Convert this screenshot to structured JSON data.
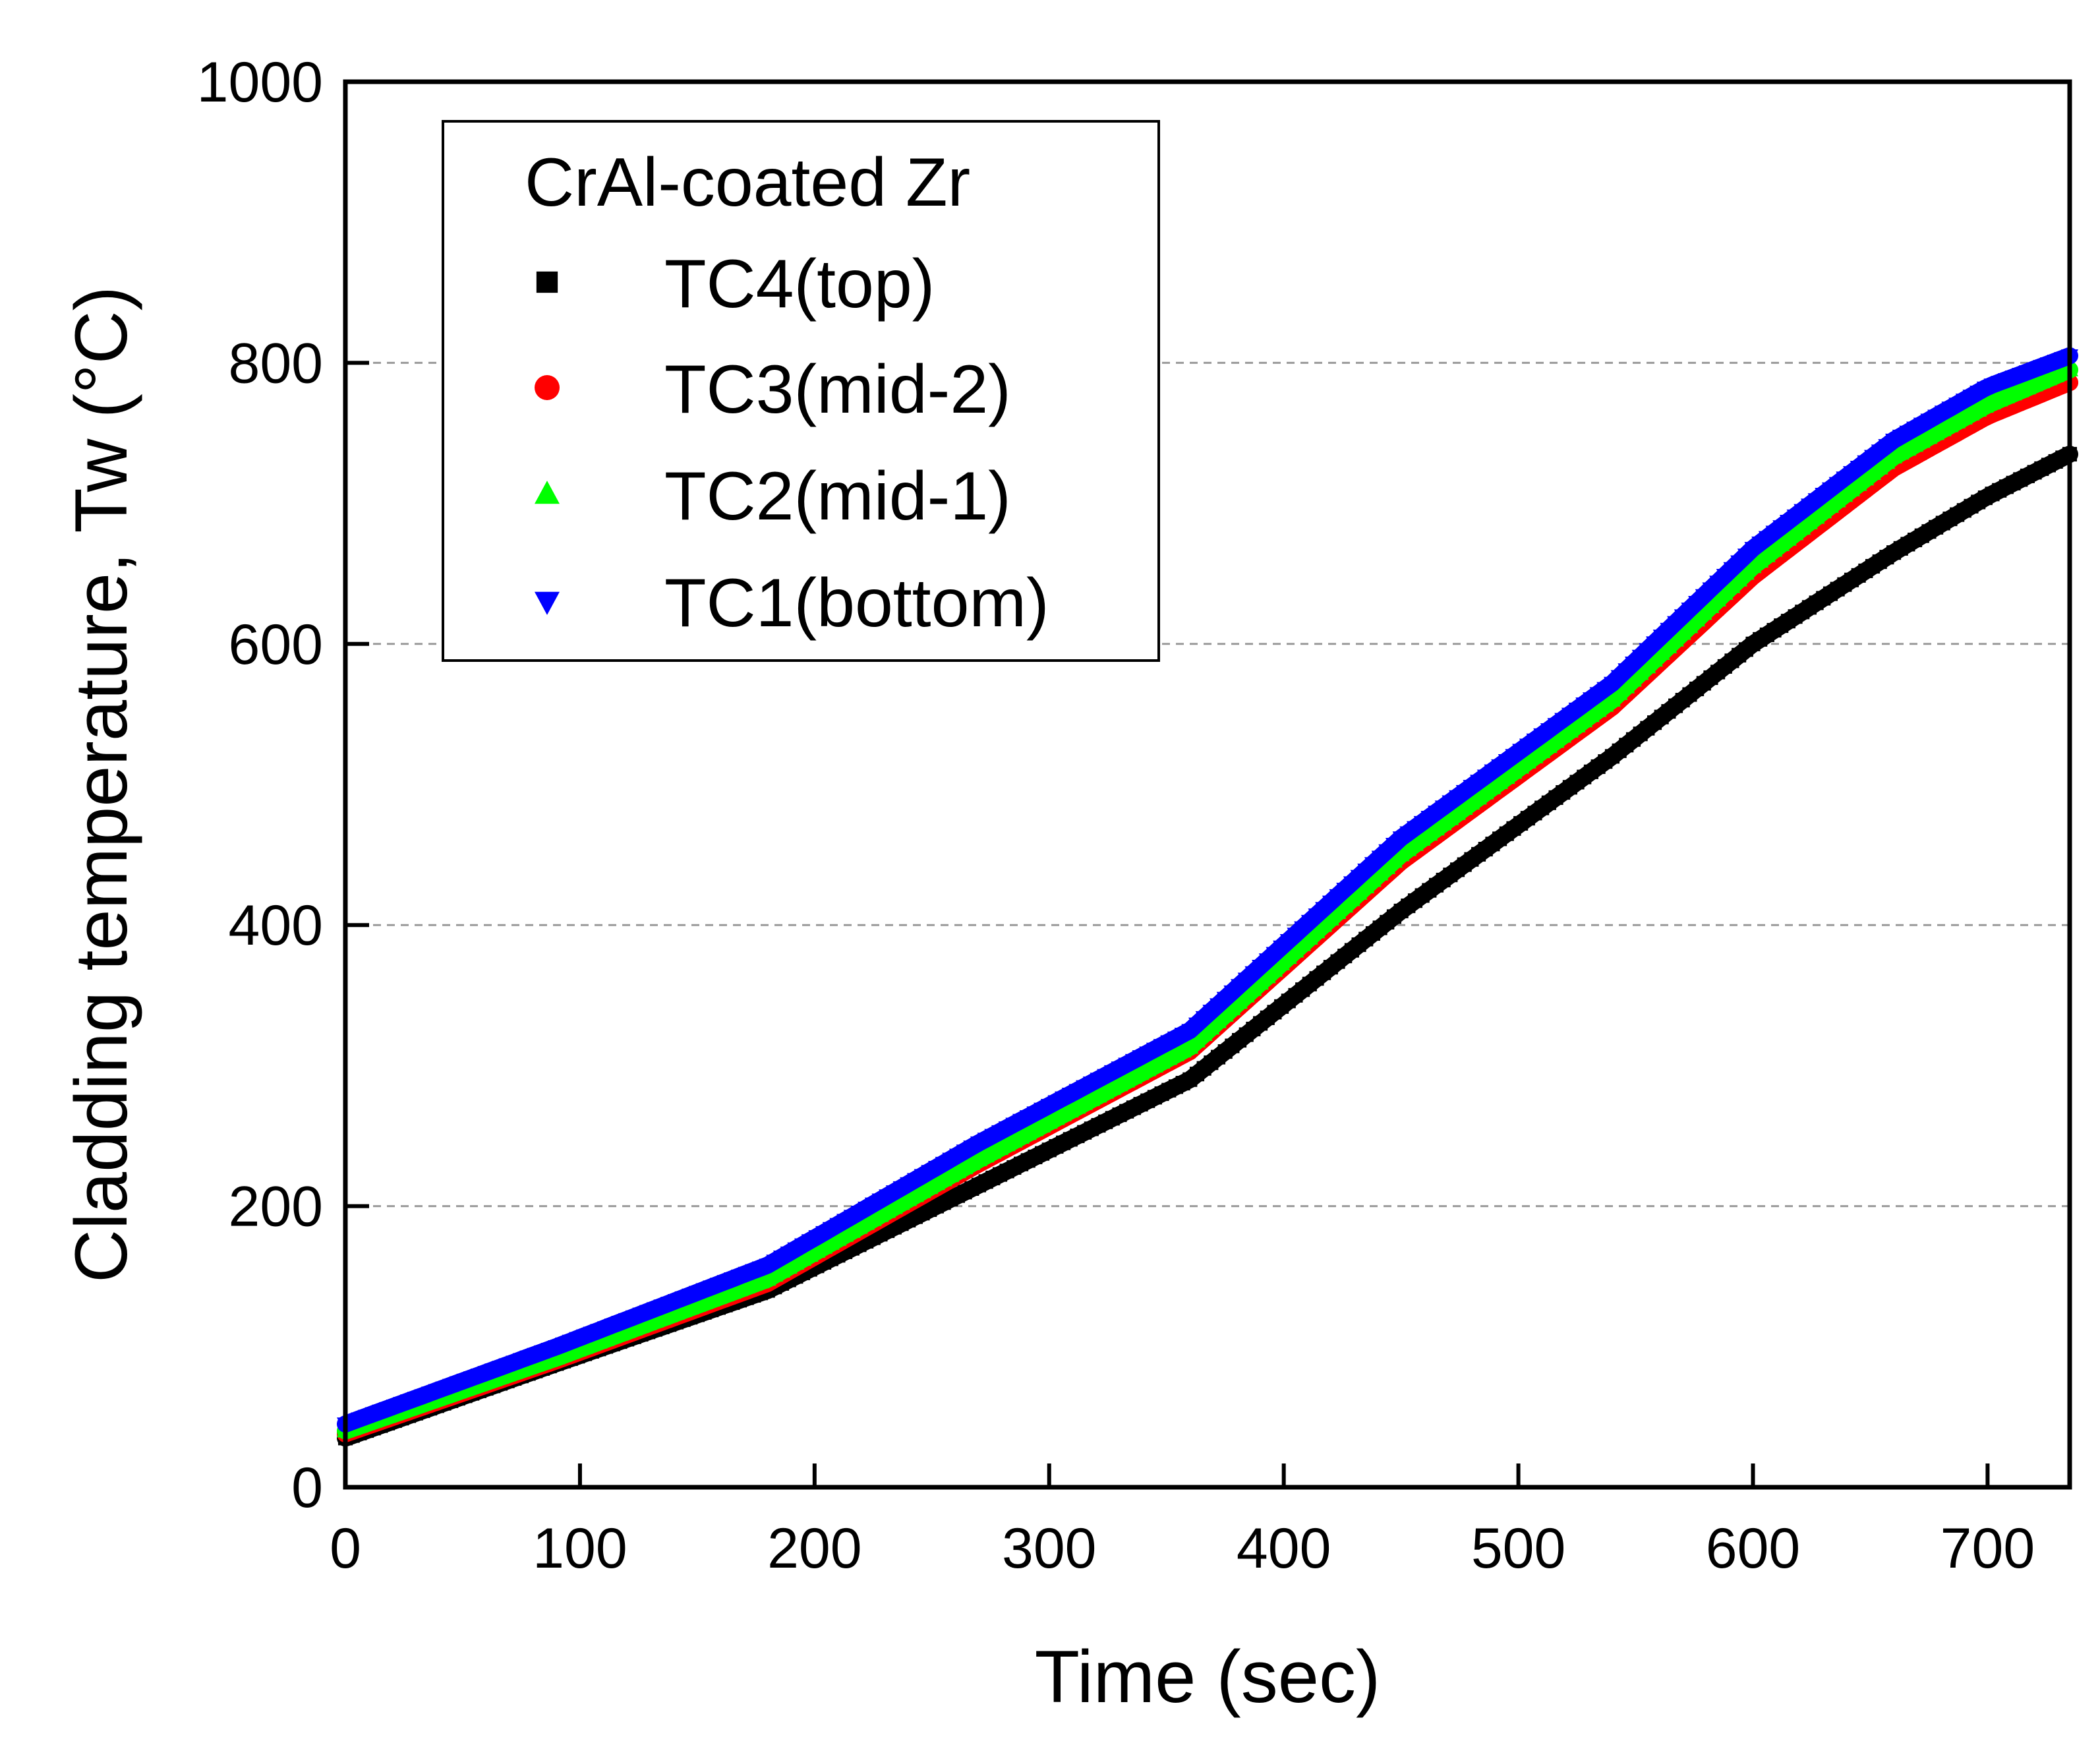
{
  "chart_data": {
    "type": "scatter",
    "title": "",
    "xlabel": "Time (sec)",
    "ylabel": "Cladding temperature, Tw (°C)",
    "xlim": [
      0,
      735
    ],
    "ylim": [
      0,
      1000
    ],
    "xticks": [
      0,
      100,
      200,
      300,
      400,
      500,
      600,
      700
    ],
    "yticks": [
      0,
      200,
      400,
      600,
      800,
      1000
    ],
    "ygrid": [
      200,
      400,
      600,
      800
    ],
    "legend": {
      "title": "CrAl-coated Zr",
      "position": "top-left"
    },
    "series": [
      {
        "name": "TC4(top)",
        "marker": "square",
        "color": "#000000",
        "anchors": [
          [
            0,
            35
          ],
          [
            90,
            88
          ],
          [
            180,
            140
          ],
          [
            270,
            215
          ],
          [
            360,
            290
          ],
          [
            450,
            410
          ],
          [
            540,
            520
          ],
          [
            600,
            600
          ],
          [
            660,
            665
          ],
          [
            700,
            705
          ],
          [
            735,
            735
          ]
        ]
      },
      {
        "name": "TC3(mid-2)",
        "marker": "circle",
        "color": "#ff0000",
        "anchors": [
          [
            0,
            38
          ],
          [
            90,
            90
          ],
          [
            180,
            145
          ],
          [
            270,
            230
          ],
          [
            360,
            310
          ],
          [
            450,
            445
          ],
          [
            540,
            555
          ],
          [
            600,
            648
          ],
          [
            660,
            725
          ],
          [
            700,
            762
          ],
          [
            735,
            786
          ]
        ]
      },
      {
        "name": "TC2(mid-1)",
        "marker": "triangle-up",
        "color": "#00ff00",
        "anchors": [
          [
            0,
            40
          ],
          [
            90,
            92
          ],
          [
            180,
            148
          ],
          [
            270,
            233
          ],
          [
            360,
            313
          ],
          [
            450,
            450
          ],
          [
            540,
            560
          ],
          [
            600,
            655
          ],
          [
            660,
            733
          ],
          [
            700,
            770
          ],
          [
            735,
            795
          ]
        ]
      },
      {
        "name": "TC1(bottom)",
        "marker": "triangle-down",
        "color": "#0000ff",
        "anchors": [
          [
            0,
            45
          ],
          [
            90,
            100
          ],
          [
            180,
            158
          ],
          [
            270,
            245
          ],
          [
            360,
            325
          ],
          [
            450,
            462
          ],
          [
            540,
            572
          ],
          [
            600,
            668
          ],
          [
            660,
            745
          ],
          [
            700,
            783
          ],
          [
            735,
            805
          ]
        ]
      }
    ]
  }
}
